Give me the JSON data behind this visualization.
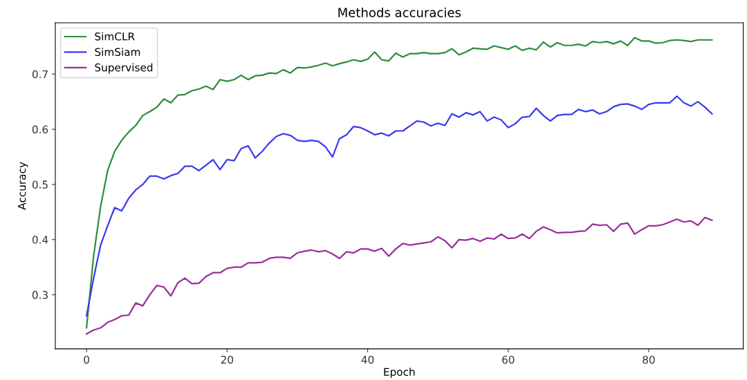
{
  "chart_data": {
    "type": "line",
    "title": "Methods accuracies",
    "xlabel": "Epoch",
    "ylabel": "Accuracy",
    "x": [
      0,
      1,
      2,
      3,
      4,
      5,
      6,
      7,
      8,
      9,
      10,
      11,
      12,
      13,
      14,
      15,
      16,
      17,
      18,
      19,
      20,
      21,
      22,
      23,
      24,
      25,
      26,
      27,
      28,
      29,
      30,
      31,
      32,
      33,
      34,
      35,
      36,
      37,
      38,
      39,
      40,
      41,
      42,
      43,
      44,
      45,
      46,
      47,
      48,
      49,
      50,
      51,
      52,
      53,
      54,
      55,
      56,
      57,
      58,
      59,
      60,
      61,
      62,
      63,
      64,
      65,
      66,
      67,
      68,
      69,
      70,
      71,
      72,
      73,
      74,
      75,
      76,
      77,
      78,
      79,
      80,
      81,
      82,
      83,
      84,
      85,
      86,
      87,
      88,
      89
    ],
    "series": [
      {
        "name": "SimCLR",
        "color": "#2e8b3a",
        "values": [
          0.24,
          0.37,
          0.46,
          0.525,
          0.56,
          0.58,
          0.595,
          0.607,
          0.625,
          0.632,
          0.64,
          0.655,
          0.648,
          0.662,
          0.663,
          0.67,
          0.673,
          0.678,
          0.672,
          0.69,
          0.687,
          0.69,
          0.698,
          0.69,
          0.697,
          0.698,
          0.702,
          0.701,
          0.708,
          0.702,
          0.712,
          0.711,
          0.713,
          0.716,
          0.72,
          0.715,
          0.719,
          0.722,
          0.726,
          0.723,
          0.727,
          0.74,
          0.726,
          0.724,
          0.738,
          0.731,
          0.737,
          0.737,
          0.739,
          0.737,
          0.737,
          0.739,
          0.746,
          0.735,
          0.74,
          0.747,
          0.746,
          0.745,
          0.751,
          0.748,
          0.745,
          0.751,
          0.743,
          0.747,
          0.744,
          0.758,
          0.749,
          0.757,
          0.752,
          0.752,
          0.754,
          0.751,
          0.759,
          0.757,
          0.759,
          0.755,
          0.76,
          0.752,
          0.766,
          0.76,
          0.76,
          0.756,
          0.757,
          0.761,
          0.762,
          0.761,
          0.759,
          0.762,
          0.762,
          0.762
        ]
      },
      {
        "name": "SimSiam",
        "color": "#3838f0",
        "values": [
          0.262,
          0.33,
          0.39,
          0.425,
          0.458,
          0.452,
          0.475,
          0.49,
          0.5,
          0.515,
          0.515,
          0.51,
          0.516,
          0.52,
          0.533,
          0.533,
          0.525,
          0.535,
          0.545,
          0.527,
          0.545,
          0.543,
          0.565,
          0.57,
          0.548,
          0.56,
          0.575,
          0.587,
          0.592,
          0.589,
          0.58,
          0.578,
          0.58,
          0.578,
          0.568,
          0.55,
          0.583,
          0.59,
          0.605,
          0.603,
          0.597,
          0.59,
          0.593,
          0.588,
          0.597,
          0.597,
          0.606,
          0.615,
          0.613,
          0.606,
          0.611,
          0.607,
          0.628,
          0.622,
          0.63,
          0.626,
          0.632,
          0.615,
          0.622,
          0.617,
          0.603,
          0.61,
          0.622,
          0.623,
          0.638,
          0.625,
          0.615,
          0.625,
          0.627,
          0.627,
          0.636,
          0.632,
          0.635,
          0.628,
          0.632,
          0.641,
          0.645,
          0.646,
          0.642,
          0.636,
          0.645,
          0.648,
          0.648,
          0.648,
          0.66,
          0.648,
          0.642,
          0.65,
          0.64,
          0.628
        ]
      },
      {
        "name": "Supervised",
        "color": "#992d99",
        "values": [
          0.229,
          0.236,
          0.24,
          0.25,
          0.255,
          0.262,
          0.263,
          0.285,
          0.28,
          0.3,
          0.317,
          0.314,
          0.298,
          0.322,
          0.33,
          0.32,
          0.321,
          0.333,
          0.34,
          0.34,
          0.348,
          0.35,
          0.35,
          0.358,
          0.358,
          0.359,
          0.366,
          0.368,
          0.368,
          0.366,
          0.376,
          0.379,
          0.381,
          0.378,
          0.38,
          0.374,
          0.366,
          0.378,
          0.376,
          0.383,
          0.383,
          0.379,
          0.384,
          0.37,
          0.383,
          0.393,
          0.39,
          0.392,
          0.394,
          0.396,
          0.405,
          0.398,
          0.385,
          0.4,
          0.399,
          0.402,
          0.397,
          0.403,
          0.401,
          0.41,
          0.402,
          0.403,
          0.41,
          0.402,
          0.415,
          0.423,
          0.418,
          0.412,
          0.413,
          0.413,
          0.415,
          0.416,
          0.428,
          0.426,
          0.427,
          0.415,
          0.428,
          0.43,
          0.41,
          0.418,
          0.425,
          0.425,
          0.427,
          0.432,
          0.437,
          0.432,
          0.434,
          0.426,
          0.44,
          0.435
        ]
      }
    ],
    "xlim": [
      -4.45,
      93.45
    ],
    "ylim": [
      0.202,
      0.793
    ],
    "xticks": [
      0,
      20,
      40,
      60,
      80
    ],
    "yticks": [
      0.3,
      0.4,
      0.5,
      0.6,
      0.7
    ],
    "legend": "top left"
  }
}
